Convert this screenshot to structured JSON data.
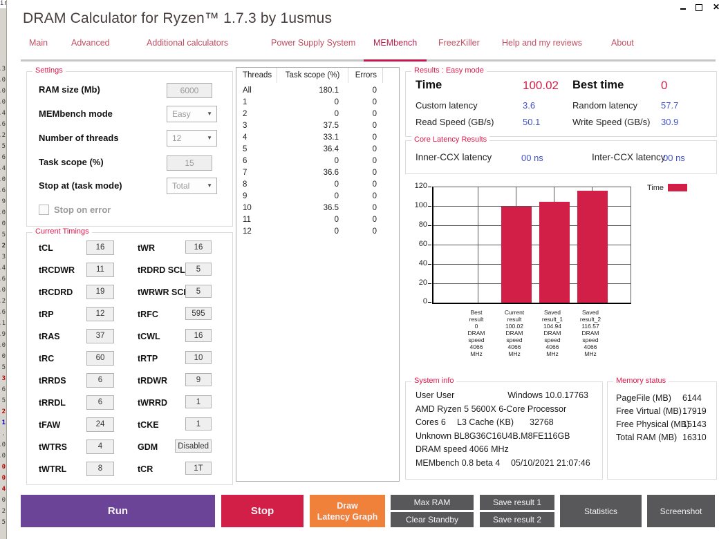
{
  "window": {
    "title": "DRAM Calculator for Ryzen™ 1.7.3 by 1usmus",
    "close_glyph": "✕"
  },
  "tabs": {
    "main": "Main",
    "advanced": "Advanced",
    "additional": "Additional calculators",
    "psu": "Power Supply System",
    "membench": "MEMbench",
    "freezkiller": "FreezKiller",
    "help": "Help and my reviews",
    "about": "About"
  },
  "settings": {
    "title": "Settings",
    "ram_size_label": "RAM size (Mb)",
    "ram_size_value": "6000",
    "mode_label": "MEMbench mode",
    "mode_value": "Easy",
    "threads_label": "Number of threads",
    "threads_value": "12",
    "task_scope_label": "Task scope (%)",
    "task_scope_value": "15",
    "stop_at_label": "Stop at (task mode)",
    "stop_at_value": "Total",
    "stop_on_error_label": "Stop on error"
  },
  "timings": {
    "title": "Current Timings",
    "left": [
      {
        "label": "tCL",
        "value": "16"
      },
      {
        "label": "tRCDWR",
        "value": "11"
      },
      {
        "label": "tRCDRD",
        "value": "19"
      },
      {
        "label": "tRP",
        "value": "12"
      },
      {
        "label": "tRAS",
        "value": "37"
      },
      {
        "label": "tRC",
        "value": "60"
      },
      {
        "label": "tRRDS",
        "value": "6"
      },
      {
        "label": "tRRDL",
        "value": "6"
      },
      {
        "label": "tFAW",
        "value": "24"
      },
      {
        "label": "tWTRS",
        "value": "4"
      },
      {
        "label": "tWTRL",
        "value": "8"
      }
    ],
    "right": [
      {
        "label": "tWR",
        "value": "16"
      },
      {
        "label": "tRDRD SCL",
        "value": "5"
      },
      {
        "label": "tWRWR SCL",
        "value": "5"
      },
      {
        "label": "tRFC",
        "value": "595"
      },
      {
        "label": "tCWL",
        "value": "16"
      },
      {
        "label": "tRTP",
        "value": "10"
      },
      {
        "label": "tRDWR",
        "value": "9"
      },
      {
        "label": "tWRRD",
        "value": "1"
      },
      {
        "label": "tCKE",
        "value": "1"
      },
      {
        "label": "GDM",
        "value": "Disabled"
      },
      {
        "label": "tCR",
        "value": "1T"
      }
    ]
  },
  "threads_table": {
    "headers": [
      "Threads",
      "Task scope (%)",
      "Errors"
    ],
    "rows": [
      [
        "All",
        "180.1",
        "0"
      ],
      [
        "1",
        "0",
        "0"
      ],
      [
        "2",
        "0",
        "0"
      ],
      [
        "3",
        "37.5",
        "0"
      ],
      [
        "4",
        "33.1",
        "0"
      ],
      [
        "5",
        "36.4",
        "0"
      ],
      [
        "6",
        "0",
        "0"
      ],
      [
        "7",
        "36.6",
        "0"
      ],
      [
        "8",
        "0",
        "0"
      ],
      [
        "9",
        "0",
        "0"
      ],
      [
        "10",
        "36.5",
        "0"
      ],
      [
        "11",
        "0",
        "0"
      ],
      [
        "12",
        "0",
        "0"
      ]
    ]
  },
  "results": {
    "title": "Results : Easy mode",
    "time_label": "Time",
    "time_value": "100.02",
    "best_time_label": "Best time",
    "best_time_value": "0",
    "custom_latency_label": "Custom latency",
    "custom_latency_value": "3.6",
    "random_latency_label": "Random latency",
    "random_latency_value": "57.7",
    "read_speed_label": "Read Speed (GB/s)",
    "read_speed_value": "50.1",
    "write_speed_label": "Write Speed (GB/s)",
    "write_speed_value": "30.9"
  },
  "core_latency": {
    "title": "Core Latency Results",
    "inner_label": "Inner-CCX latency",
    "inner_value": "00 ns",
    "inter_label": "Inter-CCX latency",
    "inter_value": "00 ns"
  },
  "chart_data": {
    "type": "bar",
    "legend_label": "Time",
    "legend_position": "top-right",
    "bar_color": "#D21F47",
    "grid": true,
    "ylim": [
      0,
      120
    ],
    "yticks": [
      "120",
      "100",
      "80",
      "60",
      "40",
      "20",
      "0"
    ],
    "values": [
      0,
      100.02,
      104.94,
      116.57
    ],
    "categories": [
      "Best\nresult\n0\nDRAM\nspeed\n4066\nMHz",
      "Current\nresult\n100.02\nDRAM\nspeed\n4066\nMHz",
      "Saved\nresult_1\n104.94\nDRAM\nspeed\n4066\nMHz",
      "Saved\nresult_2\n116.57\nDRAM\nspeed\n4066\nMHz"
    ]
  },
  "system_info": {
    "title": "System info",
    "user": "User User",
    "os": "Windows 10.0.17763",
    "cpu": "AMD Ryzen 5 5600X 6-Core Processor",
    "cores_label": "Cores 6",
    "l3_label": "L3 Cache (KB)",
    "l3_value": "32768",
    "dimm": "Unknown BL8G36C16U4B.M8FE116GB",
    "dram_speed": "DRAM speed 4066 MHz",
    "bench_version": "MEMbench 0.8 beta 4",
    "datetime": "05/10/2021 21:07:46"
  },
  "memory_status": {
    "title": "Memory status",
    "rows": [
      {
        "label": "PageFile (MB)",
        "value": "6144"
      },
      {
        "label": "Free Virtual (MB)",
        "value": "17919"
      },
      {
        "label": "Free Physical (MB)",
        "value": "15143"
      },
      {
        "label": "Total RAM (MB)",
        "value": "16310"
      }
    ]
  },
  "buttons": {
    "run": "Run",
    "stop": "Stop",
    "draw_latency": "Draw\nLatency Graph",
    "max_ram": "Max RAM",
    "clear_standby": "Clear Standby",
    "save_result_1": "Save result 1",
    "save_result_2": "Save result 2",
    "statistics": "Statistics",
    "screenshot": "Screenshot"
  },
  "colors": {
    "accent_crimson": "#D21F47",
    "accent_purple": "#6B4397",
    "accent_orange": "#F0813B",
    "value_blue": "#4252C7",
    "group_label_red": "#E0194B",
    "button_gray": "#58585A"
  },
  "left_strip": {
    "top_text": "ir",
    "items": [
      {
        "t": ".3",
        "c": "k"
      },
      {
        "t": ".0",
        "c": "k"
      },
      {
        "t": ".0",
        "c": "k"
      },
      {
        "t": ".0",
        "c": "k"
      },
      {
        "t": ".4",
        "c": "k"
      },
      {
        "t": ".6",
        "c": "k"
      },
      {
        "t": ".2",
        "c": "k"
      },
      {
        "t": "5",
        "c": "k"
      },
      {
        "t": "6",
        "c": "k"
      },
      {
        "t": ".4",
        "c": "k"
      },
      {
        "t": ".0",
        "c": "k"
      },
      {
        "t": ".6",
        "c": "k"
      },
      {
        "t": "9",
        "c": "k"
      },
      {
        "t": ".0",
        "c": "k"
      },
      {
        "t": "0",
        "c": "k"
      },
      {
        "t": "5",
        "c": "k"
      },
      {
        "t": "2",
        "c": "kb"
      },
      {
        "t": "3",
        "c": "k"
      },
      {
        "t": ".4",
        "c": "k"
      },
      {
        "t": ".6",
        "c": "k"
      },
      {
        "t": ".0",
        "c": "k"
      },
      {
        "t": ".2",
        "c": "k"
      },
      {
        "t": ".6",
        "c": "k"
      },
      {
        "t": ".1",
        "c": "k"
      },
      {
        "t": ".9",
        "c": "k"
      },
      {
        "t": ".0",
        "c": "k"
      },
      {
        "t": "0",
        "c": "k"
      },
      {
        "t": "5",
        "c": "k"
      },
      {
        "t": "3",
        "c": "r"
      },
      {
        "t": "6",
        "c": "k"
      },
      {
        "t": "5",
        "c": "k"
      },
      {
        "t": "2",
        "c": "r"
      },
      {
        "t": "1",
        "c": "b"
      },
      {
        "t": ".",
        "c": "k"
      },
      {
        "t": ".0",
        "c": "k"
      },
      {
        "t": ".0",
        "c": "k"
      },
      {
        "t": "0",
        "c": "r"
      },
      {
        "t": "0",
        "c": "r"
      },
      {
        "t": "4",
        "c": "r"
      },
      {
        "t": "0",
        "c": "k"
      },
      {
        "t": "2",
        "c": "k"
      },
      {
        "t": "5",
        "c": "k"
      }
    ]
  }
}
